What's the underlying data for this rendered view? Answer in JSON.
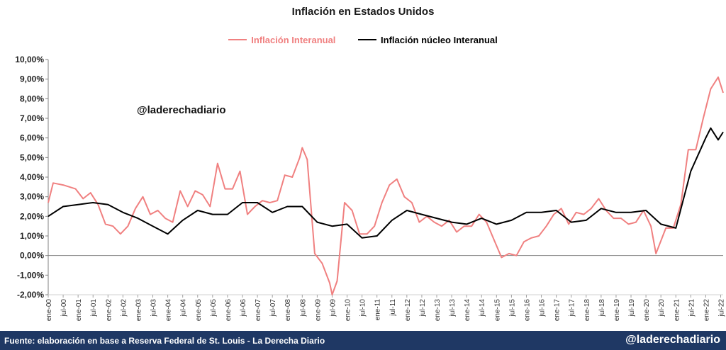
{
  "title": "Inflación en Estados Unidos",
  "watermark": "@laderechadiario",
  "footer": {
    "source": "Fuente: elaboración en base a Reserva Federal de St. Louis - La Derecha Diario",
    "handle": "@laderechadiario"
  },
  "colors": {
    "headline": "#f08080",
    "core": "#000000",
    "footer_bg": "#1f3864"
  },
  "chart_data": {
    "type": "line",
    "title": "Inflación en Estados Unidos",
    "xlabel": "",
    "ylabel": "",
    "ylim": [
      -2,
      10
    ],
    "yticks": [
      "10,00%",
      "9,00%",
      "8,00%",
      "7,00%",
      "6,00%",
      "5,00%",
      "4,00%",
      "3,00%",
      "2,00%",
      "1,00%",
      "0,00%",
      "-1,00%",
      "-2,00%"
    ],
    "xticks": [
      "ene-00",
      "jul-00",
      "ene-01",
      "jul-01",
      "ene-02",
      "jul-02",
      "ene-03",
      "jul-03",
      "ene-04",
      "jul-04",
      "ene-05",
      "jul-05",
      "ene-06",
      "jul-06",
      "ene-07",
      "jul-07",
      "ene-08",
      "jul-08",
      "ene-09",
      "jul-09",
      "ene-10",
      "jul-10",
      "ene-11",
      "jul-11",
      "ene-12",
      "jul-12",
      "ene-13",
      "jul-13",
      "ene-14",
      "jul-14",
      "ene-15",
      "jul-15",
      "ene-16",
      "jul-16",
      "ene-17",
      "jul-17",
      "ene-18",
      "jul-18",
      "ene-19",
      "jul-19",
      "ene-20",
      "jul-20",
      "ene-21",
      "jul-21",
      "ene-22",
      "jul-22"
    ],
    "legend_position": "top-center",
    "grid": false,
    "series": [
      {
        "name": "Inflación Interanual",
        "color": "#f08080",
        "points": [
          [
            "ene-00",
            2.7
          ],
          [
            "mar-00",
            3.7
          ],
          [
            "jul-00",
            3.6
          ],
          [
            "dic-00",
            3.4
          ],
          [
            "mar-01",
            2.9
          ],
          [
            "jun-01",
            3.2
          ],
          [
            "sep-01",
            2.6
          ],
          [
            "dic-01",
            1.6
          ],
          [
            "mar-02",
            1.5
          ],
          [
            "jun-02",
            1.1
          ],
          [
            "sep-02",
            1.5
          ],
          [
            "dic-02",
            2.4
          ],
          [
            "mar-03",
            3.0
          ],
          [
            "jun-03",
            2.1
          ],
          [
            "sep-03",
            2.3
          ],
          [
            "dic-03",
            1.9
          ],
          [
            "mar-04",
            1.7
          ],
          [
            "jun-04",
            3.3
          ],
          [
            "sep-04",
            2.5
          ],
          [
            "dic-04",
            3.3
          ],
          [
            "mar-05",
            3.1
          ],
          [
            "jun-05",
            2.5
          ],
          [
            "sep-05",
            4.7
          ],
          [
            "dic-05",
            3.4
          ],
          [
            "mar-06",
            3.4
          ],
          [
            "jun-06",
            4.3
          ],
          [
            "sep-06",
            2.1
          ],
          [
            "dic-06",
            2.5
          ],
          [
            "mar-07",
            2.8
          ],
          [
            "jun-07",
            2.7
          ],
          [
            "sep-07",
            2.8
          ],
          [
            "dic-07",
            4.1
          ],
          [
            "mar-08",
            4.0
          ],
          [
            "jun-08",
            5.0
          ],
          [
            "jul-08",
            5.5
          ],
          [
            "sep-08",
            4.9
          ],
          [
            "dic-08",
            0.1
          ],
          [
            "mar-09",
            -0.4
          ],
          [
            "jun-09",
            -1.4
          ],
          [
            "jul-09",
            -2.0
          ],
          [
            "sep-09",
            -1.3
          ],
          [
            "dic-09",
            2.7
          ],
          [
            "mar-10",
            2.3
          ],
          [
            "jun-10",
            1.1
          ],
          [
            "sep-10",
            1.1
          ],
          [
            "dic-10",
            1.5
          ],
          [
            "mar-11",
            2.7
          ],
          [
            "jun-11",
            3.6
          ],
          [
            "sep-11",
            3.9
          ],
          [
            "dic-11",
            3.0
          ],
          [
            "mar-12",
            2.7
          ],
          [
            "jun-12",
            1.7
          ],
          [
            "sep-12",
            2.0
          ],
          [
            "dic-12",
            1.7
          ],
          [
            "mar-13",
            1.5
          ],
          [
            "jun-13",
            1.8
          ],
          [
            "sep-13",
            1.2
          ],
          [
            "dic-13",
            1.5
          ],
          [
            "mar-14",
            1.5
          ],
          [
            "jun-14",
            2.1
          ],
          [
            "sep-14",
            1.7
          ],
          [
            "dic-14",
            0.8
          ],
          [
            "mar-15",
            -0.1
          ],
          [
            "jun-15",
            0.1
          ],
          [
            "sep-15",
            0.0
          ],
          [
            "dic-15",
            0.7
          ],
          [
            "mar-16",
            0.9
          ],
          [
            "jun-16",
            1.0
          ],
          [
            "sep-16",
            1.5
          ],
          [
            "dic-16",
            2.1
          ],
          [
            "mar-17",
            2.4
          ],
          [
            "jun-17",
            1.6
          ],
          [
            "sep-17",
            2.2
          ],
          [
            "dic-17",
            2.1
          ],
          [
            "mar-18",
            2.4
          ],
          [
            "jun-18",
            2.9
          ],
          [
            "sep-18",
            2.3
          ],
          [
            "dic-18",
            1.9
          ],
          [
            "mar-19",
            1.9
          ],
          [
            "jun-19",
            1.6
          ],
          [
            "sep-19",
            1.7
          ],
          [
            "dic-19",
            2.3
          ],
          [
            "mar-20",
            1.5
          ],
          [
            "may-20",
            0.1
          ],
          [
            "sep-20",
            1.4
          ],
          [
            "dic-20",
            1.4
          ],
          [
            "mar-21",
            2.6
          ],
          [
            "jun-21",
            5.4
          ],
          [
            "sep-21",
            5.4
          ],
          [
            "dic-21",
            7.0
          ],
          [
            "mar-22",
            8.5
          ],
          [
            "jun-22",
            9.1
          ],
          [
            "ago-22",
            8.3
          ]
        ]
      },
      {
        "name": "Inflación núcleo Interanual",
        "color": "#000000",
        "points": [
          [
            "ene-00",
            2.0
          ],
          [
            "jul-00",
            2.5
          ],
          [
            "ene-01",
            2.6
          ],
          [
            "jul-01",
            2.7
          ],
          [
            "ene-02",
            2.6
          ],
          [
            "jul-02",
            2.2
          ],
          [
            "ene-03",
            1.9
          ],
          [
            "jul-03",
            1.5
          ],
          [
            "ene-04",
            1.1
          ],
          [
            "jul-04",
            1.8
          ],
          [
            "ene-05",
            2.3
          ],
          [
            "jul-05",
            2.1
          ],
          [
            "ene-06",
            2.1
          ],
          [
            "jul-06",
            2.7
          ],
          [
            "ene-07",
            2.7
          ],
          [
            "jul-07",
            2.2
          ],
          [
            "ene-08",
            2.5
          ],
          [
            "jul-08",
            2.5
          ],
          [
            "ene-09",
            1.7
          ],
          [
            "jul-09",
            1.5
          ],
          [
            "ene-10",
            1.6
          ],
          [
            "jul-10",
            0.9
          ],
          [
            "ene-11",
            1.0
          ],
          [
            "jul-11",
            1.8
          ],
          [
            "ene-12",
            2.3
          ],
          [
            "jul-12",
            2.1
          ],
          [
            "ene-13",
            1.9
          ],
          [
            "jul-13",
            1.7
          ],
          [
            "ene-14",
            1.6
          ],
          [
            "jul-14",
            1.9
          ],
          [
            "ene-15",
            1.6
          ],
          [
            "jul-15",
            1.8
          ],
          [
            "ene-16",
            2.2
          ],
          [
            "jul-16",
            2.2
          ],
          [
            "ene-17",
            2.3
          ],
          [
            "jul-17",
            1.7
          ],
          [
            "ene-18",
            1.8
          ],
          [
            "jul-18",
            2.4
          ],
          [
            "ene-19",
            2.2
          ],
          [
            "jul-19",
            2.2
          ],
          [
            "ene-20",
            2.3
          ],
          [
            "jul-20",
            1.6
          ],
          [
            "ene-21",
            1.4
          ],
          [
            "jul-21",
            4.3
          ],
          [
            "ene-22",
            6.0
          ],
          [
            "mar-22",
            6.5
          ],
          [
            "jun-22",
            5.9
          ],
          [
            "ago-22",
            6.3
          ]
        ]
      }
    ]
  }
}
